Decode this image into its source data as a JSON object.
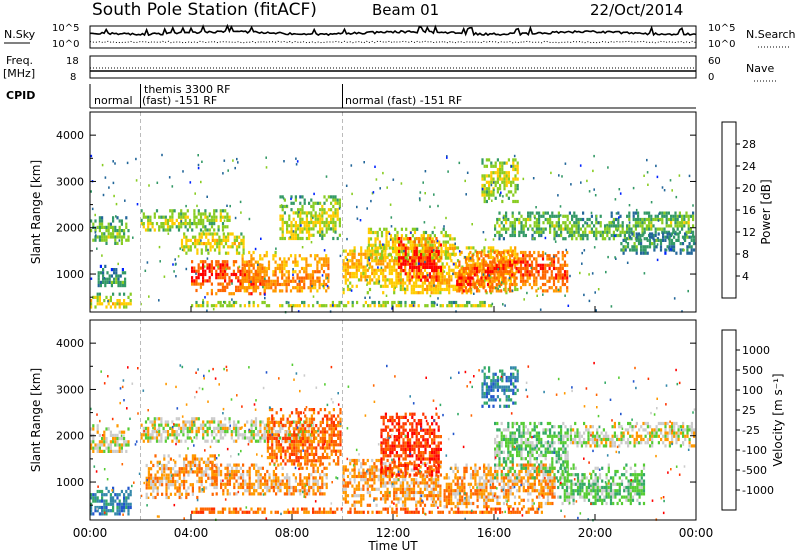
{
  "header": {
    "station": "South Pole Station (fitACF)",
    "beam": "Beam 01",
    "date": "22/Oct/2014"
  },
  "strips": {
    "nsky_label": "N.Sky",
    "nsky_ticks": [
      "10^5",
      "10^0"
    ],
    "nsearch_label": "N.Search",
    "nsearch_ticks": [
      "10^5",
      "10^0"
    ],
    "freq_label": "Freq.",
    "freq_unit": "[MHz]",
    "freq_ticks": [
      "18",
      "8"
    ],
    "nave_label": "Nave",
    "nave_ticks": [
      "60",
      "0"
    ],
    "cpid_label": "CPID",
    "cpid_segments": [
      {
        "start": 0,
        "end": 2,
        "text1": "normal",
        "text2": ""
      },
      {
        "start": 2,
        "end": 10,
        "text1": "themis 3300 RF",
        "text2": "(fast) -151 RF"
      },
      {
        "start": 10,
        "end": 24,
        "text1": "normal (fast) -151 RF",
        "text2": ""
      }
    ]
  },
  "colorbars": {
    "power_label": "Power [dB]",
    "power_ticks": [
      "28",
      "24",
      "20",
      "16",
      "12",
      "8",
      "4"
    ],
    "power_colors": [
      "#ff0000",
      "#ff6600",
      "#ff9900",
      "#ffcc00",
      "#88cc22",
      "#339966",
      "#226699",
      "#0022ff"
    ],
    "velocity_label": "Velocity [m s⁻¹]",
    "velocity_ticks": [
      "1000",
      "500",
      "100",
      "25",
      "-25",
      "-100",
      "-500",
      "-1000"
    ],
    "velocity_colors": [
      "#2255cc",
      "#3388aa",
      "#33aa66",
      "#55cc33",
      "#cccccc",
      "#ff9900",
      "#ff6600",
      "#ff3300",
      "#ff0000"
    ]
  },
  "chart_data": [
    {
      "type": "heatmap",
      "title": "",
      "ylabel": "Slant Range [km]",
      "xlabel": "",
      "xlim": [
        0,
        24
      ],
      "ylim": [
        180,
        4500
      ],
      "yticks": [
        1000,
        2000,
        3000,
        4000
      ],
      "x_tick_labels": [
        "00:00",
        "04:00",
        "08:00",
        "12:00",
        "16:00",
        "20:00",
        "00:00"
      ],
      "colorbar": "Power [dB]",
      "echo_bands": [
        {
          "t0": 0.0,
          "t1": 1.6,
          "r0": 1600,
          "r1": 2250,
          "level": 10
        },
        {
          "t0": 0.0,
          "t1": 1.7,
          "r0": 250,
          "r1": 600,
          "level": 14
        },
        {
          "t0": 0.3,
          "t1": 1.5,
          "r0": 700,
          "r1": 1200,
          "level": 6
        },
        {
          "t0": 2.0,
          "t1": 5.6,
          "r0": 1850,
          "r1": 2400,
          "level": 11
        },
        {
          "t0": 3.6,
          "t1": 6.2,
          "r0": 1400,
          "r1": 1900,
          "level": 14
        },
        {
          "t0": 4.0,
          "t1": 7.0,
          "r0": 500,
          "r1": 1300,
          "level": 24
        },
        {
          "t0": 6.0,
          "t1": 9.5,
          "r0": 600,
          "r1": 1500,
          "level": 19
        },
        {
          "t0": 7.5,
          "t1": 10.0,
          "r0": 1700,
          "r1": 2700,
          "level": 12
        },
        {
          "t0": 10.0,
          "t1": 17.0,
          "r0": 500,
          "r1": 1600,
          "level": 16
        },
        {
          "t0": 11.0,
          "t1": 14.5,
          "r0": 1300,
          "r1": 2000,
          "level": 14
        },
        {
          "t0": 12.2,
          "t1": 14.0,
          "r0": 800,
          "r1": 1800,
          "level": 26
        },
        {
          "t0": 14.5,
          "t1": 19.0,
          "r0": 600,
          "r1": 1500,
          "level": 23
        },
        {
          "t0": 15.5,
          "t1": 17.0,
          "r0": 2500,
          "r1": 3500,
          "level": 12
        },
        {
          "t0": 16.0,
          "t1": 24.0,
          "r0": 1700,
          "r1": 2350,
          "level": 9
        },
        {
          "t0": 4.0,
          "t1": 16.0,
          "r0": 250,
          "r1": 420,
          "level": 12
        },
        {
          "t0": 21.0,
          "t1": 24.0,
          "r0": 1400,
          "r1": 1900,
          "level": 6
        }
      ]
    },
    {
      "type": "heatmap",
      "title": "",
      "ylabel": "Slant Range [km]",
      "xlabel": "Time UT",
      "xlim": [
        0,
        24
      ],
      "ylim": [
        180,
        4500
      ],
      "yticks": [
        1000,
        2000,
        3000,
        4000
      ],
      "x_tick_labels": [
        "00:00",
        "04:00",
        "08:00",
        "12:00",
        "16:00",
        "20:00",
        "00:00"
      ],
      "colorbar": "Velocity [m s⁻¹]",
      "echo_bands": [
        {
          "t0": 0.0,
          "t1": 1.6,
          "r0": 1600,
          "r1": 2250,
          "level": 4
        },
        {
          "t0": 0.0,
          "t1": 1.7,
          "r0": 250,
          "r1": 900,
          "level": 1
        },
        {
          "t0": 2.0,
          "t1": 9.0,
          "r0": 1800,
          "r1": 2400,
          "level": 4
        },
        {
          "t0": 2.2,
          "t1": 5.0,
          "r0": 600,
          "r1": 1600,
          "level": 5
        },
        {
          "t0": 4.8,
          "t1": 9.5,
          "r0": 700,
          "r1": 1400,
          "level": 5
        },
        {
          "t0": 7.0,
          "t1": 10.0,
          "r0": 1300,
          "r1": 2600,
          "level": 6
        },
        {
          "t0": 10.0,
          "t1": 14.0,
          "r0": 400,
          "r1": 1500,
          "level": 5
        },
        {
          "t0": 11.5,
          "t1": 14.0,
          "r0": 1100,
          "r1": 2500,
          "level": 7
        },
        {
          "t0": 14.0,
          "t1": 18.5,
          "r0": 400,
          "r1": 1400,
          "level": 5
        },
        {
          "t0": 15.5,
          "t1": 17.0,
          "r0": 2600,
          "r1": 3500,
          "level": 1
        },
        {
          "t0": 16.0,
          "t1": 19.0,
          "r0": 1000,
          "r1": 2300,
          "level": 3
        },
        {
          "t0": 19.0,
          "t1": 24.0,
          "r0": 1700,
          "r1": 2300,
          "level": 4
        },
        {
          "t0": 18.5,
          "t1": 22.0,
          "r0": 500,
          "r1": 1400,
          "level": 3
        },
        {
          "t0": 4.0,
          "t1": 18.0,
          "r0": 250,
          "r1": 450,
          "level": 6
        }
      ]
    }
  ]
}
